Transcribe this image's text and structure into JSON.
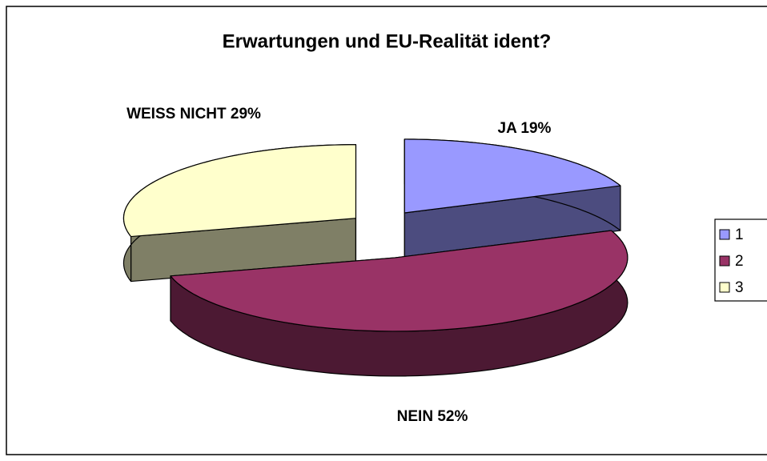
{
  "chart_data": {
    "type": "pie3d",
    "title": "Erwartungen und EU-Realität ident?",
    "categories": [
      "1",
      "2",
      "3"
    ],
    "values": [
      19,
      52,
      29
    ],
    "value_labels": [
      "JA 19%",
      "NEIN 52%",
      "WEISS NICHT 29%"
    ],
    "colors": [
      "#9999ff",
      "#993366",
      "#ffffcc"
    ],
    "legend": "right"
  }
}
